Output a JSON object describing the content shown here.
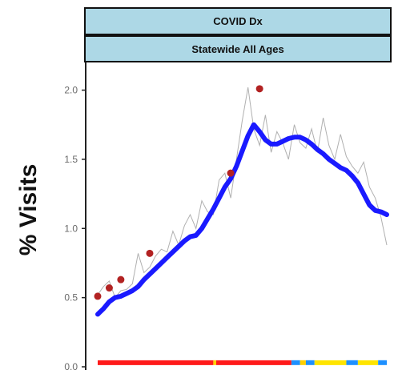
{
  "chart_data": {
    "type": "line",
    "strip_titles": [
      "COVID Dx",
      "Statewide All Ages"
    ],
    "ylabel": "% Visits",
    "xlabel": "",
    "ylim": [
      0,
      2.2
    ],
    "yticks": [
      0.0,
      0.5,
      1.0,
      1.5,
      2.0
    ],
    "ytick_labels": [
      "0.0",
      "0.5",
      "1.0",
      "1.5",
      "2.0"
    ],
    "grid": false,
    "x_domain": [
      0,
      100
    ],
    "series": [
      {
        "role": "daily",
        "color": "#b0b0b0",
        "x": [
          0,
          2,
          4,
          6,
          8,
          10,
          12,
          14,
          16,
          18,
          20,
          22,
          24,
          26,
          28,
          30,
          32,
          34,
          36,
          38,
          40,
          42,
          44,
          46,
          48,
          50,
          52,
          54,
          56,
          58,
          60,
          62,
          64,
          66,
          68,
          70,
          72,
          74,
          76,
          78,
          80,
          82,
          84,
          86,
          88,
          90,
          92,
          94,
          96,
          98,
          100
        ],
        "values": [
          0.52,
          0.58,
          0.62,
          0.5,
          0.55,
          0.56,
          0.6,
          0.82,
          0.68,
          0.72,
          0.8,
          0.85,
          0.83,
          0.98,
          0.88,
          1.02,
          1.1,
          1.0,
          1.2,
          1.12,
          1.1,
          1.35,
          1.4,
          1.22,
          1.5,
          1.78,
          2.02,
          1.72,
          1.6,
          1.82,
          1.55,
          1.7,
          1.62,
          1.5,
          1.75,
          1.62,
          1.58,
          1.72,
          1.55,
          1.8,
          1.6,
          1.5,
          1.68,
          1.52,
          1.45,
          1.4,
          1.48,
          1.3,
          1.22,
          1.08,
          0.88
        ]
      },
      {
        "role": "smoothed",
        "color": "#1a1aff",
        "x": [
          0,
          2,
          4,
          6,
          8,
          10,
          12,
          14,
          16,
          18,
          20,
          22,
          24,
          26,
          28,
          30,
          32,
          34,
          36,
          38,
          40,
          42,
          44,
          46,
          48,
          50,
          52,
          54,
          56,
          58,
          60,
          62,
          64,
          66,
          68,
          70,
          72,
          74,
          76,
          78,
          80,
          82,
          84,
          86,
          88,
          90,
          92,
          94,
          96,
          98,
          100
        ],
        "values": [
          0.38,
          0.42,
          0.47,
          0.5,
          0.51,
          0.53,
          0.55,
          0.58,
          0.63,
          0.67,
          0.71,
          0.75,
          0.79,
          0.83,
          0.87,
          0.91,
          0.94,
          0.95,
          1.0,
          1.07,
          1.14,
          1.22,
          1.3,
          1.36,
          1.45,
          1.56,
          1.67,
          1.75,
          1.7,
          1.64,
          1.61,
          1.61,
          1.63,
          1.65,
          1.66,
          1.66,
          1.64,
          1.61,
          1.57,
          1.54,
          1.5,
          1.47,
          1.44,
          1.42,
          1.38,
          1.33,
          1.25,
          1.17,
          1.13,
          1.12,
          1.1
        ]
      },
      {
        "role": "flagged",
        "color": "#b22222",
        "x": [
          0,
          4,
          8,
          18,
          46,
          56
        ],
        "values": [
          0.51,
          0.57,
          0.63,
          0.82,
          1.4,
          2.01
        ]
      }
    ],
    "status_bar": {
      "y": 0.03,
      "segments": [
        {
          "start": 0,
          "end": 40,
          "color": "#ff1a1a"
        },
        {
          "start": 40,
          "end": 41,
          "color": "#ffd000"
        },
        {
          "start": 41,
          "end": 67,
          "color": "#ff1a1a"
        },
        {
          "start": 67,
          "end": 70,
          "color": "#1e90ff"
        },
        {
          "start": 70,
          "end": 72,
          "color": "#ffd000"
        },
        {
          "start": 72,
          "end": 75,
          "color": "#1e90ff"
        },
        {
          "start": 75,
          "end": 86,
          "color": "#ffe400"
        },
        {
          "start": 86,
          "end": 90,
          "color": "#1e90ff"
        },
        {
          "start": 90,
          "end": 97,
          "color": "#ffe400"
        },
        {
          "start": 97,
          "end": 100,
          "color": "#1e90ff"
        }
      ]
    }
  },
  "colors": {
    "strip_fill": "#add8e6",
    "strip_border": "#111111",
    "axis": "#222222",
    "tick_label": "#6a6a6a"
  }
}
